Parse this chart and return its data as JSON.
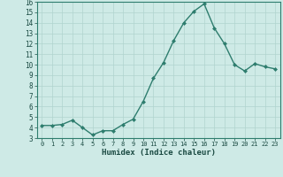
{
  "x": [
    0,
    1,
    2,
    3,
    4,
    5,
    6,
    7,
    8,
    9,
    10,
    11,
    12,
    13,
    14,
    15,
    16,
    17,
    18,
    19,
    20,
    21,
    22,
    23
  ],
  "y": [
    4.2,
    4.2,
    4.3,
    4.7,
    4.0,
    3.3,
    3.7,
    3.7,
    4.3,
    4.8,
    6.5,
    8.7,
    10.2,
    12.3,
    14.0,
    15.1,
    15.8,
    13.5,
    12.0,
    10.0,
    9.4,
    10.1,
    9.8,
    9.6
  ],
  "title": "",
  "xlabel": "Humidex (Indice chaleur)",
  "ylabel": "",
  "xlim": [
    -0.5,
    23.5
  ],
  "ylim": [
    3,
    16
  ],
  "yticks": [
    3,
    4,
    5,
    6,
    7,
    8,
    9,
    10,
    11,
    12,
    13,
    14,
    15,
    16
  ],
  "xticks": [
    0,
    1,
    2,
    3,
    4,
    5,
    6,
    7,
    8,
    9,
    10,
    11,
    12,
    13,
    14,
    15,
    16,
    17,
    18,
    19,
    20,
    21,
    22,
    23
  ],
  "line_color": "#2e7d6e",
  "marker_color": "#2e7d6e",
  "bg_color": "#ceeae6",
  "grid_color": "#b0d4cf",
  "label_color": "#1a4a42",
  "tick_color": "#1a4a42",
  "spine_color": "#2e7d6e"
}
